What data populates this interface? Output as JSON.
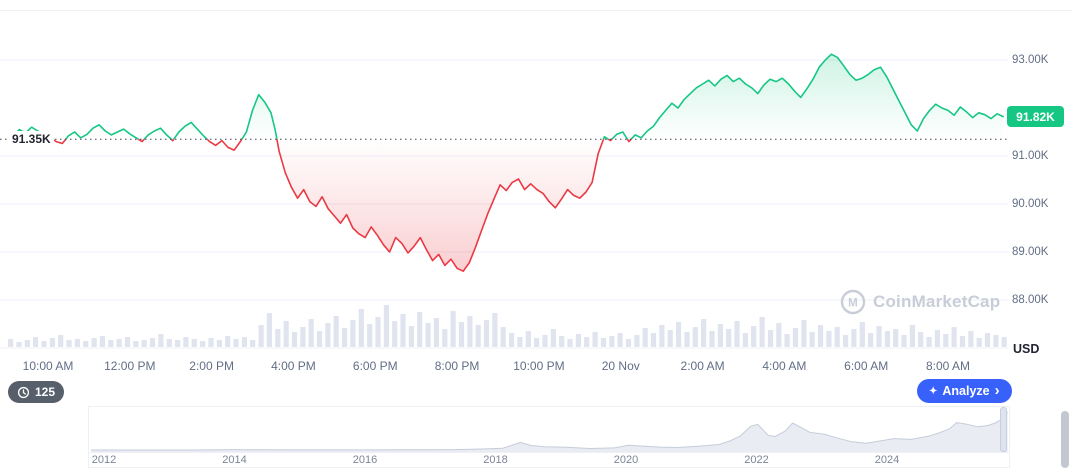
{
  "chart": {
    "baseline_label": "91.35K",
    "current_price_label": "91.82K",
    "currency": "USD"
  },
  "y_axis": {
    "ticks": [
      {
        "label": "93.00K",
        "value": 93
      },
      {
        "label": "91.00K",
        "value": 91
      },
      {
        "label": "90.00K",
        "value": 90
      },
      {
        "label": "89.00K",
        "value": 89
      },
      {
        "label": "88.00K",
        "value": 88
      }
    ]
  },
  "x_axis": {
    "labels": [
      "10:00 AM",
      "12:00 PM",
      "2:00 PM",
      "4:00 PM",
      "6:00 PM",
      "8:00 PM",
      "10:00 PM",
      "20 Nov",
      "2:00 AM",
      "4:00 AM",
      "6:00 AM",
      "8:00 AM"
    ]
  },
  "toolbar": {
    "countdown": "125",
    "analyze_label": "Analyze",
    "analyze_chevron": "›",
    "sparkle": "✦"
  },
  "watermark": {
    "text": "CoinMarketCap",
    "logo_letter": "M"
  },
  "navigator": {
    "year_labels": [
      "2012",
      "2014",
      "2016",
      "2018",
      "2020",
      "2022",
      "2024"
    ]
  },
  "colors": {
    "up": "#16c784",
    "down": "#ea3943",
    "accent_blue": "#3861fb",
    "axis_text": "#616e85",
    "dark_text": "#222531",
    "grid": "#eceff4",
    "volume": "#e0e4ef",
    "baseline_dots": "#3e4656",
    "nav_fill": "#e9ecf3",
    "nav_line": "#c6ccda"
  },
  "chart_data": {
    "type": "line",
    "title": "BTC/USD 24-hour price",
    "x_unit": "hours since 09:00 AM, 19 Nov",
    "y_unit": "thousand USD",
    "baseline_value": 91.35,
    "last_price": 91.82,
    "ylim": [
      87.9,
      94.0
    ],
    "y_ticks": [
      88,
      89,
      90,
      91,
      93
    ],
    "points": [
      [
        0.15,
        91.42
      ],
      [
        0.3,
        91.55
      ],
      [
        0.45,
        91.48
      ],
      [
        0.6,
        91.6
      ],
      [
        0.75,
        91.52
      ],
      [
        0.9,
        91.45
      ],
      [
        1.05,
        91.38
      ],
      [
        1.2,
        91.3
      ],
      [
        1.35,
        91.26
      ],
      [
        1.5,
        91.42
      ],
      [
        1.65,
        91.5
      ],
      [
        1.8,
        91.38
      ],
      [
        1.95,
        91.45
      ],
      [
        2.1,
        91.58
      ],
      [
        2.25,
        91.65
      ],
      [
        2.4,
        91.52
      ],
      [
        2.55,
        91.44
      ],
      [
        2.7,
        91.5
      ],
      [
        2.85,
        91.56
      ],
      [
        3.0,
        91.46
      ],
      [
        3.15,
        91.38
      ],
      [
        3.3,
        91.3
      ],
      [
        3.45,
        91.44
      ],
      [
        3.6,
        91.52
      ],
      [
        3.75,
        91.58
      ],
      [
        3.9,
        91.44
      ],
      [
        4.05,
        91.32
      ],
      [
        4.2,
        91.5
      ],
      [
        4.35,
        91.62
      ],
      [
        4.5,
        91.7
      ],
      [
        4.65,
        91.56
      ],
      [
        4.8,
        91.42
      ],
      [
        4.95,
        91.3
      ],
      [
        5.1,
        91.22
      ],
      [
        5.25,
        91.32
      ],
      [
        5.4,
        91.18
      ],
      [
        5.55,
        91.12
      ],
      [
        5.7,
        91.3
      ],
      [
        5.85,
        91.5
      ],
      [
        6.0,
        91.95
      ],
      [
        6.15,
        92.28
      ],
      [
        6.3,
        92.12
      ],
      [
        6.45,
        91.9
      ],
      [
        6.55,
        91.55
      ],
      [
        6.65,
        91.1
      ],
      [
        6.8,
        90.65
      ],
      [
        6.95,
        90.35
      ],
      [
        7.1,
        90.12
      ],
      [
        7.25,
        90.3
      ],
      [
        7.4,
        90.05
      ],
      [
        7.55,
        89.95
      ],
      [
        7.7,
        90.15
      ],
      [
        7.85,
        89.9
      ],
      [
        8.0,
        89.75
      ],
      [
        8.15,
        89.6
      ],
      [
        8.3,
        89.78
      ],
      [
        8.45,
        89.5
      ],
      [
        8.6,
        89.38
      ],
      [
        8.75,
        89.3
      ],
      [
        8.9,
        89.52
      ],
      [
        9.05,
        89.35
      ],
      [
        9.2,
        89.15
      ],
      [
        9.35,
        89.0
      ],
      [
        9.5,
        89.3
      ],
      [
        9.65,
        89.18
      ],
      [
        9.8,
        88.98
      ],
      [
        9.95,
        89.12
      ],
      [
        10.1,
        89.3
      ],
      [
        10.25,
        89.05
      ],
      [
        10.4,
        88.82
      ],
      [
        10.55,
        88.95
      ],
      [
        10.7,
        88.72
      ],
      [
        10.85,
        88.85
      ],
      [
        11.0,
        88.66
      ],
      [
        11.15,
        88.6
      ],
      [
        11.3,
        88.78
      ],
      [
        11.45,
        89.1
      ],
      [
        11.6,
        89.45
      ],
      [
        11.75,
        89.8
      ],
      [
        11.9,
        90.1
      ],
      [
        12.05,
        90.4
      ],
      [
        12.2,
        90.28
      ],
      [
        12.35,
        90.45
      ],
      [
        12.5,
        90.52
      ],
      [
        12.65,
        90.3
      ],
      [
        12.8,
        90.42
      ],
      [
        12.95,
        90.3
      ],
      [
        13.1,
        90.22
      ],
      [
        13.25,
        90.05
      ],
      [
        13.4,
        89.92
      ],
      [
        13.55,
        90.1
      ],
      [
        13.7,
        90.3
      ],
      [
        13.85,
        90.18
      ],
      [
        14.0,
        90.12
      ],
      [
        14.15,
        90.25
      ],
      [
        14.3,
        90.45
      ],
      [
        14.45,
        91.05
      ],
      [
        14.6,
        91.4
      ],
      [
        14.75,
        91.32
      ],
      [
        14.9,
        91.45
      ],
      [
        15.05,
        91.5
      ],
      [
        15.2,
        91.3
      ],
      [
        15.35,
        91.44
      ],
      [
        15.5,
        91.38
      ],
      [
        15.65,
        91.52
      ],
      [
        15.8,
        91.62
      ],
      [
        15.95,
        91.8
      ],
      [
        16.1,
        91.95
      ],
      [
        16.25,
        92.1
      ],
      [
        16.4,
        92.0
      ],
      [
        16.55,
        92.18
      ],
      [
        16.7,
        92.3
      ],
      [
        16.85,
        92.42
      ],
      [
        17.0,
        92.5
      ],
      [
        17.15,
        92.58
      ],
      [
        17.3,
        92.46
      ],
      [
        17.45,
        92.6
      ],
      [
        17.6,
        92.68
      ],
      [
        17.75,
        92.55
      ],
      [
        17.9,
        92.62
      ],
      [
        18.05,
        92.5
      ],
      [
        18.2,
        92.42
      ],
      [
        18.35,
        92.3
      ],
      [
        18.5,
        92.48
      ],
      [
        18.65,
        92.6
      ],
      [
        18.8,
        92.55
      ],
      [
        18.95,
        92.62
      ],
      [
        19.1,
        92.5
      ],
      [
        19.25,
        92.35
      ],
      [
        19.4,
        92.22
      ],
      [
        19.55,
        92.4
      ],
      [
        19.7,
        92.6
      ],
      [
        19.85,
        92.85
      ],
      [
        20.0,
        93.0
      ],
      [
        20.15,
        93.12
      ],
      [
        20.3,
        93.05
      ],
      [
        20.45,
        92.88
      ],
      [
        20.6,
        92.7
      ],
      [
        20.75,
        92.58
      ],
      [
        20.9,
        92.62
      ],
      [
        21.05,
        92.7
      ],
      [
        21.2,
        92.8
      ],
      [
        21.35,
        92.85
      ],
      [
        21.5,
        92.65
      ],
      [
        21.65,
        92.4
      ],
      [
        21.8,
        92.15
      ],
      [
        21.95,
        91.9
      ],
      [
        22.1,
        91.65
      ],
      [
        22.25,
        91.52
      ],
      [
        22.4,
        91.78
      ],
      [
        22.55,
        91.95
      ],
      [
        22.7,
        92.08
      ],
      [
        22.85,
        92.0
      ],
      [
        23.0,
        91.95
      ],
      [
        23.15,
        91.85
      ],
      [
        23.3,
        92.02
      ],
      [
        23.45,
        91.92
      ],
      [
        23.6,
        91.8
      ],
      [
        23.75,
        91.9
      ],
      [
        23.9,
        91.86
      ],
      [
        24.05,
        91.78
      ],
      [
        24.2,
        91.88
      ],
      [
        24.35,
        91.82
      ]
    ],
    "volume_bars": [
      8,
      5,
      7,
      10,
      6,
      9,
      12,
      7,
      8,
      6,
      9,
      11,
      7,
      8,
      10,
      6,
      7,
      9,
      13,
      8,
      7,
      10,
      8,
      6,
      9,
      7,
      11,
      8,
      10,
      7,
      22,
      34,
      18,
      26,
      15,
      20,
      28,
      16,
      24,
      31,
      19,
      27,
      38,
      23,
      30,
      42,
      26,
      33,
      21,
      35,
      24,
      29,
      18,
      36,
      25,
      31,
      22,
      27,
      34,
      20,
      14,
      10,
      16,
      9,
      12,
      18,
      11,
      8,
      13,
      10,
      15,
      9,
      11,
      14,
      8,
      12,
      19,
      14,
      22,
      17,
      25,
      15,
      20,
      28,
      16,
      23,
      18,
      26,
      14,
      21,
      30,
      17,
      24,
      13,
      19,
      27,
      15,
      22,
      16,
      20,
      12,
      18,
      25,
      14,
      21,
      16,
      18,
      12,
      22,
      15,
      10,
      17,
      13,
      20,
      11,
      16,
      9,
      14,
      12,
      10
    ],
    "navigator_series": {
      "x_unit": "year",
      "points": [
        [
          2011.8,
          0.01
        ],
        [
          2012.3,
          0.01
        ],
        [
          2012.8,
          0.01
        ],
        [
          2013.3,
          0.1
        ],
        [
          2013.85,
          1.0
        ],
        [
          2014.0,
          0.8
        ],
        [
          2014.3,
          0.45
        ],
        [
          2014.8,
          0.35
        ],
        [
          2015.2,
          0.22
        ],
        [
          2015.7,
          0.28
        ],
        [
          2016.2,
          0.42
        ],
        [
          2016.7,
          0.65
        ],
        [
          2017.0,
          1.0
        ],
        [
          2017.4,
          2.5
        ],
        [
          2017.7,
          4.5
        ],
        [
          2017.95,
          18.5
        ],
        [
          2018.1,
          11
        ],
        [
          2018.3,
          8
        ],
        [
          2018.6,
          6.5
        ],
        [
          2018.95,
          3.7
        ],
        [
          2019.3,
          5.2
        ],
        [
          2019.5,
          11.5
        ],
        [
          2019.7,
          9.5
        ],
        [
          2019.95,
          7.2
        ],
        [
          2020.2,
          6.2
        ],
        [
          2020.5,
          9.2
        ],
        [
          2020.8,
          13.5
        ],
        [
          2020.95,
          22
        ],
        [
          2021.1,
          34
        ],
        [
          2021.25,
          58
        ],
        [
          2021.35,
          63
        ],
        [
          2021.5,
          36
        ],
        [
          2021.6,
          33
        ],
        [
          2021.75,
          47
        ],
        [
          2021.85,
          66
        ],
        [
          2021.95,
          57
        ],
        [
          2022.1,
          43
        ],
        [
          2022.3,
          39
        ],
        [
          2022.5,
          29
        ],
        [
          2022.7,
          20
        ],
        [
          2022.9,
          16.5
        ],
        [
          2023.1,
          22
        ],
        [
          2023.3,
          28
        ],
        [
          2023.55,
          26
        ],
        [
          2023.8,
          34
        ],
        [
          2023.95,
          42
        ],
        [
          2024.1,
          52
        ],
        [
          2024.2,
          67
        ],
        [
          2024.35,
          63
        ],
        [
          2024.5,
          57
        ],
        [
          2024.65,
          60
        ],
        [
          2024.75,
          66
        ],
        [
          2024.85,
          75
        ],
        [
          2024.9,
          88
        ],
        [
          2024.93,
          93
        ]
      ]
    }
  }
}
